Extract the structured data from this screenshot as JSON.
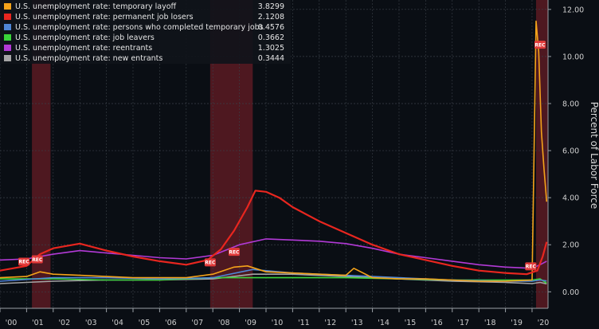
{
  "chart_data": {
    "type": "line",
    "title": "",
    "xlabel": "",
    "ylabel": "Percent of Labor Force",
    "xlim": [
      2000.0,
      2020.6
    ],
    "ylim": [
      -0.7,
      12.4
    ],
    "y_ticks": [
      0.0,
      2.0,
      4.0,
      6.0,
      8.0,
      10.0,
      12.0
    ],
    "y_tick_labels": [
      "0.00",
      "2.00",
      "4.00",
      "6.00",
      "8.00",
      "10.00",
      "12.00"
    ],
    "x_ticks": [
      2000,
      2001,
      2002,
      2003,
      2004,
      2005,
      2006,
      2007,
      2008,
      2009,
      2010,
      2011,
      2012,
      2013,
      2014,
      2015,
      2016,
      2017,
      2018,
      2019,
      2020
    ],
    "x_tick_labels": [
      "'00",
      "'01",
      "'02",
      "'03",
      "'04",
      "'05",
      "'06",
      "'07",
      "'08",
      "'09",
      "'10",
      "'11",
      "'12",
      "'13",
      "'14",
      "'15",
      "'16",
      "'17",
      "'18",
      "'19",
      "'20"
    ],
    "grid": true,
    "legend_position": "top-left",
    "recessions": [
      {
        "start": 2001.2,
        "end": 2001.9
      },
      {
        "start": 2007.9,
        "end": 2009.5
      },
      {
        "start": 2020.15,
        "end": 2020.6
      }
    ],
    "rec_markers": [
      {
        "label": "REC",
        "x": 2000.9,
        "y": 1.28
      },
      {
        "label": "REC",
        "x": 2001.4,
        "y": 1.38
      },
      {
        "label": "REC",
        "x": 2007.9,
        "y": 1.25
      },
      {
        "label": "REC",
        "x": 2008.8,
        "y": 1.7
      },
      {
        "label": "REC",
        "x": 2019.95,
        "y": 1.08
      },
      {
        "label": "REC",
        "x": 2020.3,
        "y": 10.5
      }
    ],
    "series": [
      {
        "name": "U.S. unemployment rate: temporary layoff",
        "last_value": "3.8299",
        "color": "#f5a31a",
        "x": [
          2000,
          2001,
          2001.5,
          2002,
          2003,
          2004,
          2005,
          2006,
          2007,
          2008,
          2008.8,
          2009.3,
          2010,
          2011,
          2012,
          2013,
          2013.3,
          2014,
          2015,
          2016,
          2017,
          2018,
          2019,
          2020.0,
          2020.15,
          2020.25,
          2020.35,
          2020.45,
          2020.55
        ],
        "y": [
          0.6,
          0.65,
          0.85,
          0.75,
          0.7,
          0.65,
          0.6,
          0.6,
          0.6,
          0.75,
          1.05,
          1.1,
          0.85,
          0.8,
          0.75,
          0.7,
          1.0,
          0.6,
          0.55,
          0.55,
          0.5,
          0.45,
          0.45,
          0.5,
          11.5,
          10.2,
          6.8,
          5.2,
          3.83
        ]
      },
      {
        "name": "U.S. unemployment rate: permanent job losers",
        "last_value": "2.1208",
        "color": "#e8261f",
        "x": [
          2000,
          2001,
          2001.5,
          2002,
          2003,
          2004,
          2005,
          2006,
          2007,
          2007.8,
          2008.3,
          2008.8,
          2009.3,
          2009.6,
          2010,
          2010.5,
          2011,
          2012,
          2013,
          2014,
          2015,
          2016,
          2017,
          2018,
          2019,
          2019.8,
          2020.2,
          2020.4,
          2020.55
        ],
        "y": [
          0.9,
          1.1,
          1.6,
          1.85,
          2.05,
          1.75,
          1.5,
          1.3,
          1.15,
          1.35,
          1.8,
          2.6,
          3.6,
          4.3,
          4.25,
          4.0,
          3.6,
          3.0,
          2.5,
          2.0,
          1.6,
          1.35,
          1.1,
          0.9,
          0.8,
          0.75,
          0.9,
          1.5,
          2.12
        ]
      },
      {
        "name": "U.S. unemployment rate: persons who completed temporary jobs",
        "last_value": "0.4576",
        "color": "#4f86d6",
        "x": [
          2000,
          2002,
          2004,
          2006,
          2008,
          2009.5,
          2011,
          2013,
          2015,
          2017,
          2019,
          2020.0,
          2020.3,
          2020.55
        ],
        "y": [
          0.45,
          0.6,
          0.6,
          0.55,
          0.6,
          0.95,
          0.8,
          0.7,
          0.6,
          0.5,
          0.45,
          0.45,
          0.5,
          0.46
        ]
      },
      {
        "name": "U.S. unemployment rate: job leavers",
        "last_value": "0.3662",
        "color": "#39d339",
        "x": [
          2000,
          2002,
          2004,
          2006,
          2008,
          2009.5,
          2011,
          2013,
          2015,
          2017,
          2019,
          2020.0,
          2020.3,
          2020.55
        ],
        "y": [
          0.55,
          0.55,
          0.5,
          0.5,
          0.6,
          0.6,
          0.6,
          0.6,
          0.55,
          0.5,
          0.5,
          0.5,
          0.55,
          0.37
        ]
      },
      {
        "name": "U.S. unemployment rate: reentrants",
        "last_value": "1.3025",
        "color": "#b23ad6",
        "x": [
          2000,
          2001,
          2002,
          2003,
          2004,
          2005,
          2006,
          2007,
          2008,
          2009,
          2010,
          2011,
          2012,
          2013,
          2014,
          2015,
          2016,
          2017,
          2018,
          2019,
          2020.0,
          2020.3,
          2020.55
        ],
        "y": [
          1.35,
          1.4,
          1.6,
          1.75,
          1.65,
          1.55,
          1.45,
          1.4,
          1.55,
          2.0,
          2.25,
          2.2,
          2.15,
          2.05,
          1.85,
          1.6,
          1.45,
          1.3,
          1.15,
          1.05,
          1.0,
          1.15,
          1.3
        ]
      },
      {
        "name": "U.S. unemployment rate: new entrants",
        "last_value": "0.3444",
        "color": "#a6a6a6",
        "x": [
          2000,
          2002,
          2004,
          2006,
          2008,
          2009.5,
          2011,
          2013,
          2015,
          2017,
          2019,
          2020.0,
          2020.3,
          2020.55
        ],
        "y": [
          0.35,
          0.45,
          0.5,
          0.5,
          0.55,
          0.75,
          0.75,
          0.65,
          0.55,
          0.45,
          0.4,
          0.35,
          0.4,
          0.34
        ]
      }
    ]
  },
  "colors": {
    "background": "#0a0e14",
    "grid": "#3a4048",
    "recession_band": "#5a1a22",
    "legend_bg": "#10141a"
  }
}
